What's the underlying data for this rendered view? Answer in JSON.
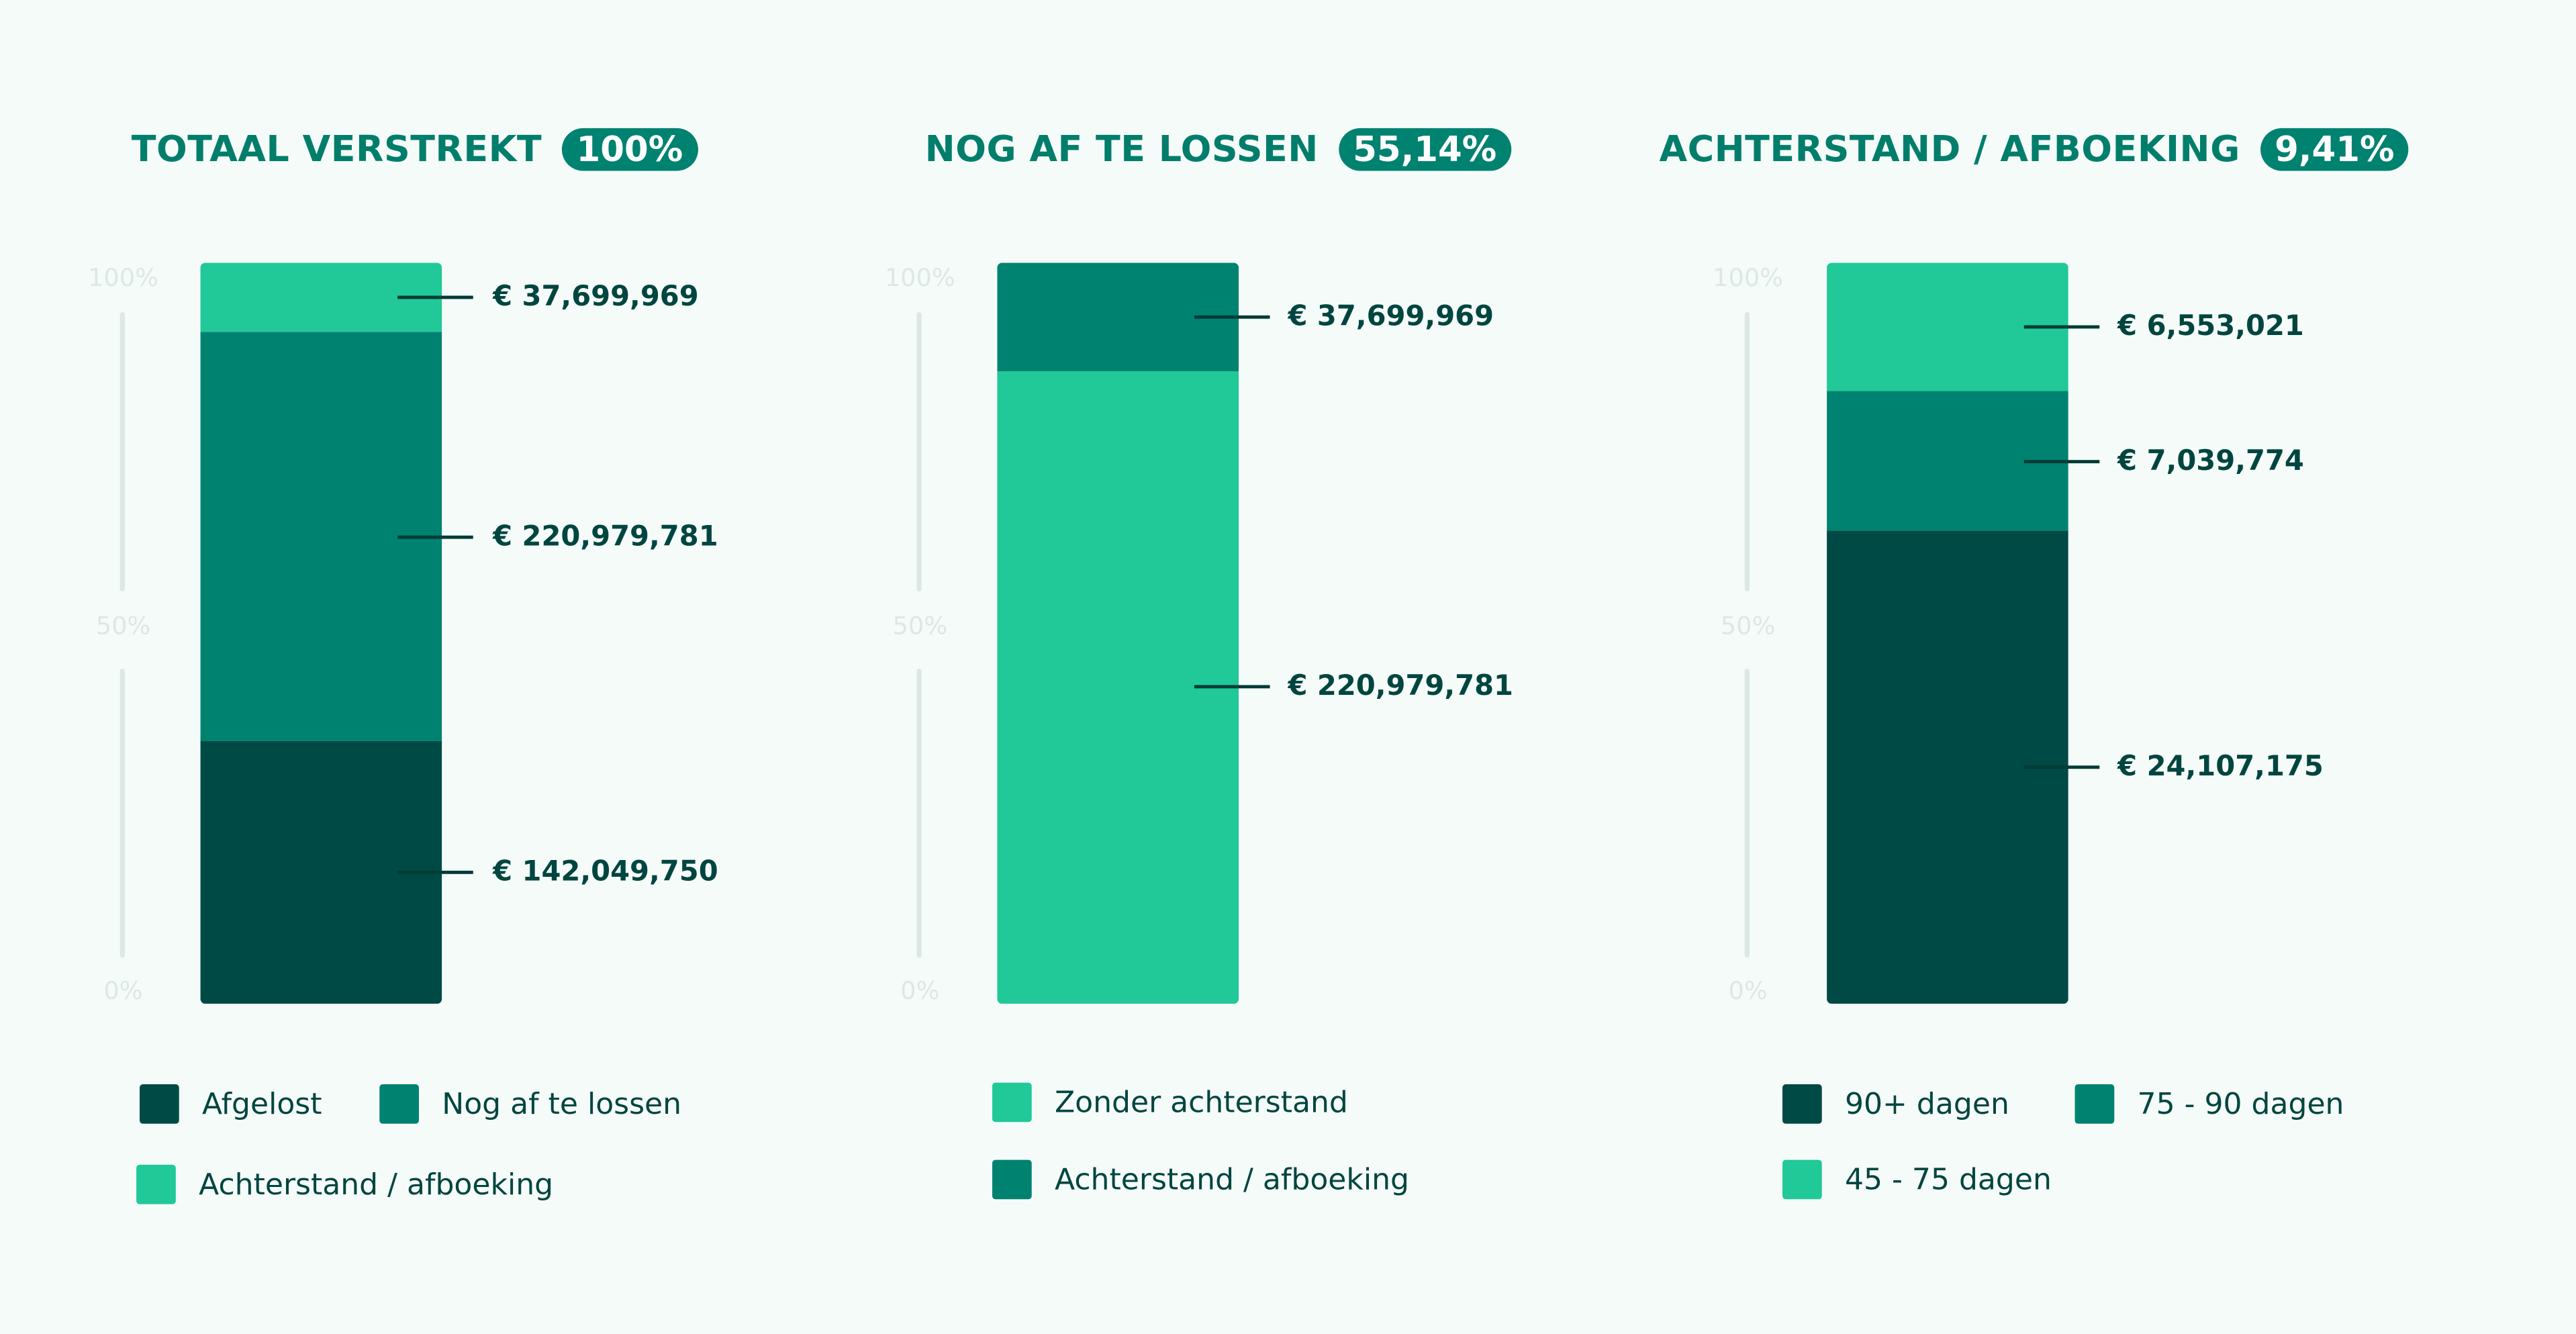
{
  "colors": {
    "dark": "#004a45",
    "teal": "#008270",
    "light": "#21c898"
  },
  "chart_data": [
    {
      "type": "bar",
      "stacked": true,
      "title": "TOTAAL VERSTREKT",
      "badge": "100%",
      "yticks": [
        "100%",
        "50%",
        "0%"
      ],
      "segments": [
        {
          "name": "Afgelost",
          "value": 142049750,
          "label": "€ 142,049,750",
          "color": "#004a45"
        },
        {
          "name": "Nog af te lossen",
          "value": 220979781,
          "label": "€ 220,979,781",
          "color": "#008270"
        },
        {
          "name": "Achterstand / afboeking",
          "value": 37699969,
          "label": "€ 37,699,969",
          "color": "#21c898"
        }
      ],
      "legend": [
        "Afgelost",
        "Nog af te lossen",
        "Achterstand / afboeking"
      ]
    },
    {
      "type": "bar",
      "stacked": true,
      "title": "NOG AF TE LOSSEN",
      "badge": "55,14%",
      "yticks": [
        "100%",
        "50%",
        "0%"
      ],
      "segments": [
        {
          "name": "Zonder achterstand",
          "value": 220979781,
          "label": "€ 220,979,781",
          "color": "#21c898"
        },
        {
          "name": "Achterstand / afboeking",
          "value": 37699969,
          "label": "€ 37,699,969",
          "color": "#008270"
        }
      ],
      "legend": [
        "Zonder achterstand",
        "Achterstand / afboeking"
      ]
    },
    {
      "type": "bar",
      "stacked": true,
      "title": "ACHTERSTAND / AFBOEKING",
      "badge": "9,41%",
      "yticks": [
        "100%",
        "50%",
        "0%"
      ],
      "segments": [
        {
          "name": "90+ dagen",
          "value": 24107175,
          "label": "€ 24,107,175",
          "color": "#004a45"
        },
        {
          "name": "75 - 90 dagen",
          "value": 7039774,
          "label": "€ 7,039,774",
          "color": "#008270"
        },
        {
          "name": "45 - 75 dagen",
          "value": 6553021,
          "label": "€ 6,553,021",
          "color": "#21c898"
        }
      ],
      "legend": [
        "90+ dagen",
        "75 - 90 dagen",
        "45 - 75 dagen"
      ]
    }
  ]
}
